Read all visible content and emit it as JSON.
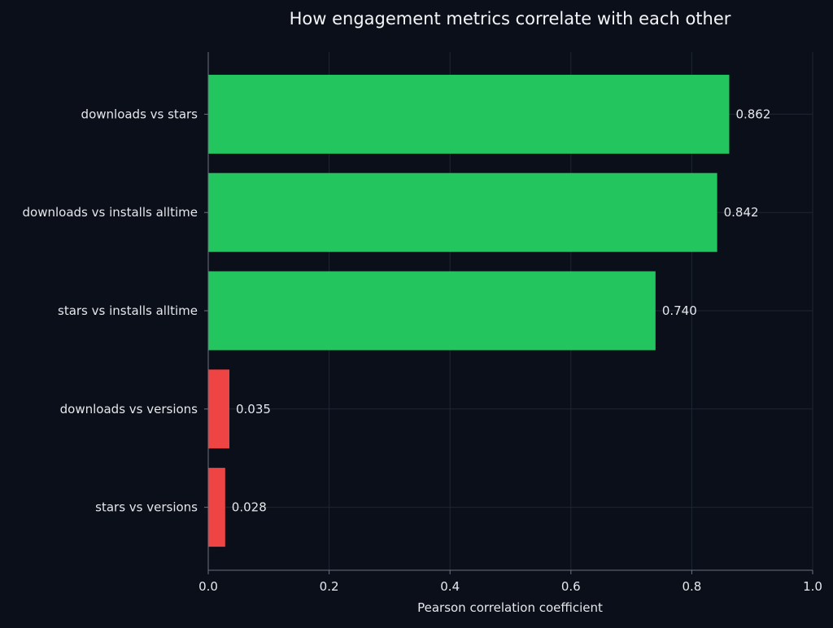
{
  "chart_data": {
    "type": "bar",
    "orientation": "horizontal",
    "title": "How engagement metrics correlate with each other",
    "xlabel": "Pearson correlation coefficient",
    "ylabel": "",
    "xlim": [
      0,
      1.0
    ],
    "xticks": [
      "0.0",
      "0.2",
      "0.4",
      "0.6",
      "0.8",
      "1.0"
    ],
    "grid": true,
    "legend": "none",
    "categories": [
      "downloads vs stars",
      "downloads vs installs alltime",
      "stars vs installs alltime",
      "downloads vs versions",
      "stars vs versions"
    ],
    "values": [
      0.862,
      0.842,
      0.74,
      0.035,
      0.028
    ],
    "value_labels": [
      "0.862",
      "0.842",
      "0.740",
      "0.035",
      "0.028"
    ],
    "colors": {
      "strong": "#22c55e",
      "weak": "#ef4444",
      "background": "#0b0f19",
      "grid": "#1f2633",
      "axis": "#6b7280",
      "text": "#e5e7eb",
      "title": "#f3f4f6"
    },
    "strong_threshold": 0.5
  }
}
